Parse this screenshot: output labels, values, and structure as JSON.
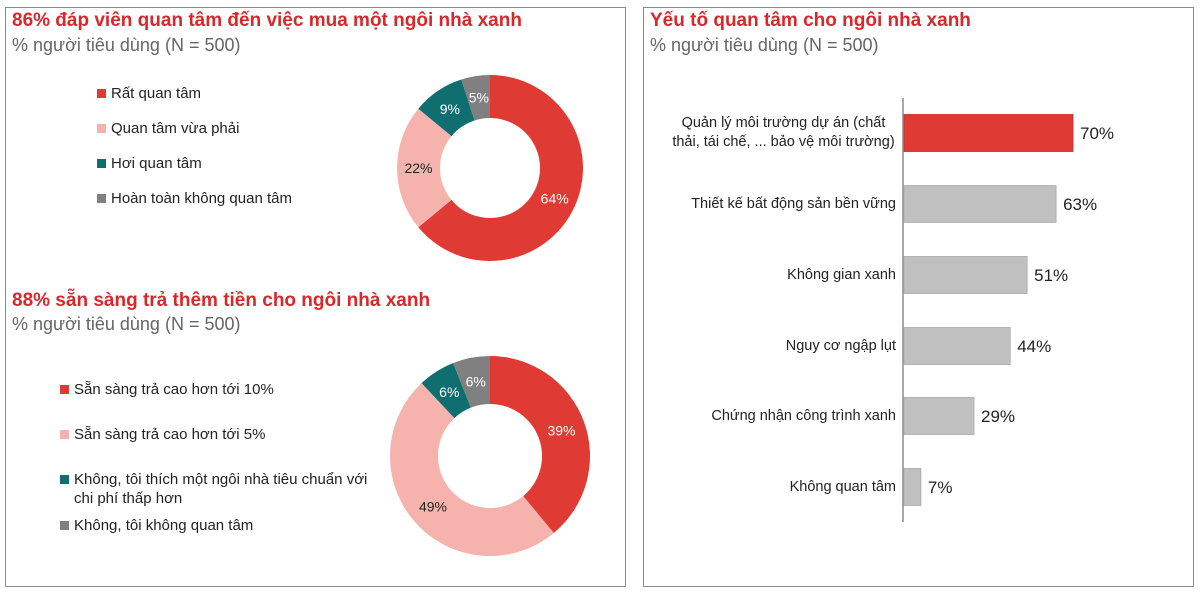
{
  "chart_data": [
    {
      "type": "pie",
      "title": "86% đáp viên quan tâm đến việc mua một ngôi nhà xanh",
      "subtitle": "% người tiêu dùng (N = 500)",
      "legend_placement": "left",
      "categories": [
        "Rất quan tâm",
        "Quan tâm vừa phải",
        "Hơi quan tâm",
        "Hoàn toàn không quan tâm"
      ],
      "values": [
        64,
        22,
        9,
        5
      ],
      "labels": [
        "64%",
        "22%",
        "9%",
        "5%"
      ],
      "colors": [
        "#e03a35",
        "#f6b3ae",
        "#0f6e70",
        "#808080"
      ],
      "label_colors": [
        "#ffffff",
        "#222222",
        "#ffffff",
        "#ffffff"
      ]
    },
    {
      "type": "pie",
      "title": "88% sẵn sàng trả thêm tiền cho ngôi nhà xanh",
      "subtitle": "% người tiêu dùng (N = 500)",
      "legend_placement": "left",
      "categories": [
        "Sẵn sàng trả cao hơn tới 10%",
        "Sẵn sàng trả cao hơn tới 5%",
        "Không, tôi thích một ngôi nhà tiêu chuẩn với chi phí thấp hơn",
        "Không, tôi không quan tâm"
      ],
      "values": [
        39,
        49,
        6,
        6
      ],
      "labels": [
        "39%",
        "49%",
        "6%",
        "6%"
      ],
      "colors": [
        "#e03a35",
        "#f6b3ae",
        "#0f6e70",
        "#808080"
      ],
      "label_colors": [
        "#ffffff",
        "#222222",
        "#ffffff",
        "#ffffff"
      ]
    },
    {
      "type": "bar",
      "orientation": "horizontal",
      "title": "Yếu tố quan tâm cho ngôi nhà xanh",
      "subtitle": "% người tiêu dùng (N = 500)",
      "categories": [
        "Quản lý môi trường dự án (chất thải, tái chế, ... bảo vệ môi trường)",
        "Thiết kế bất động sản bền vững",
        "Không gian xanh",
        "Nguy cơ ngập lụt",
        "Chứng nhận công trình xanh",
        "Không quan tâm"
      ],
      "values": [
        70,
        63,
        51,
        44,
        29,
        7
      ],
      "labels": [
        "70%",
        "63%",
        "51%",
        "44%",
        "29%",
        "7%"
      ],
      "colors": [
        "#e03a35",
        "#c0c0c0",
        "#c0c0c0",
        "#c0c0c0",
        "#c0c0c0",
        "#c0c0c0"
      ],
      "xlim": [
        0,
        100
      ],
      "grid": false
    }
  ]
}
